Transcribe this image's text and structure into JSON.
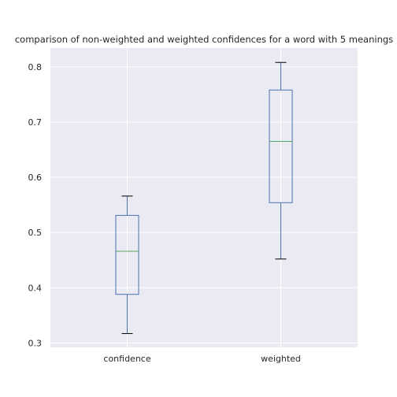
{
  "chart_data": {
    "type": "box",
    "title": "comparison of non-weighted and weighted confidences for a word with 5 meanings",
    "xlabel": "",
    "ylabel": "",
    "ylim": [
      0.292,
      0.834
    ],
    "yticks": [
      0.3,
      0.4,
      0.5,
      0.6,
      0.7,
      0.8
    ],
    "ytick_labels": [
      "0.3",
      "0.4",
      "0.5",
      "0.6",
      "0.7",
      "0.8"
    ],
    "categories": [
      "confidence",
      "weighted"
    ],
    "boxes": [
      {
        "label": "confidence",
        "whisker_low": 0.317,
        "q1": 0.388,
        "median": 0.466,
        "q3": 0.531,
        "whisker_high": 0.566
      },
      {
        "label": "weighted",
        "whisker_low": 0.452,
        "q1": 0.554,
        "median": 0.665,
        "q3": 0.758,
        "whisker_high": 0.808
      }
    ],
    "grid": true,
    "colors": {
      "background": "#eaeaf2",
      "grid": "#ffffff",
      "box": "#4c72b0",
      "median": "#55a868",
      "cap": "#000000",
      "text": "#262626"
    }
  }
}
